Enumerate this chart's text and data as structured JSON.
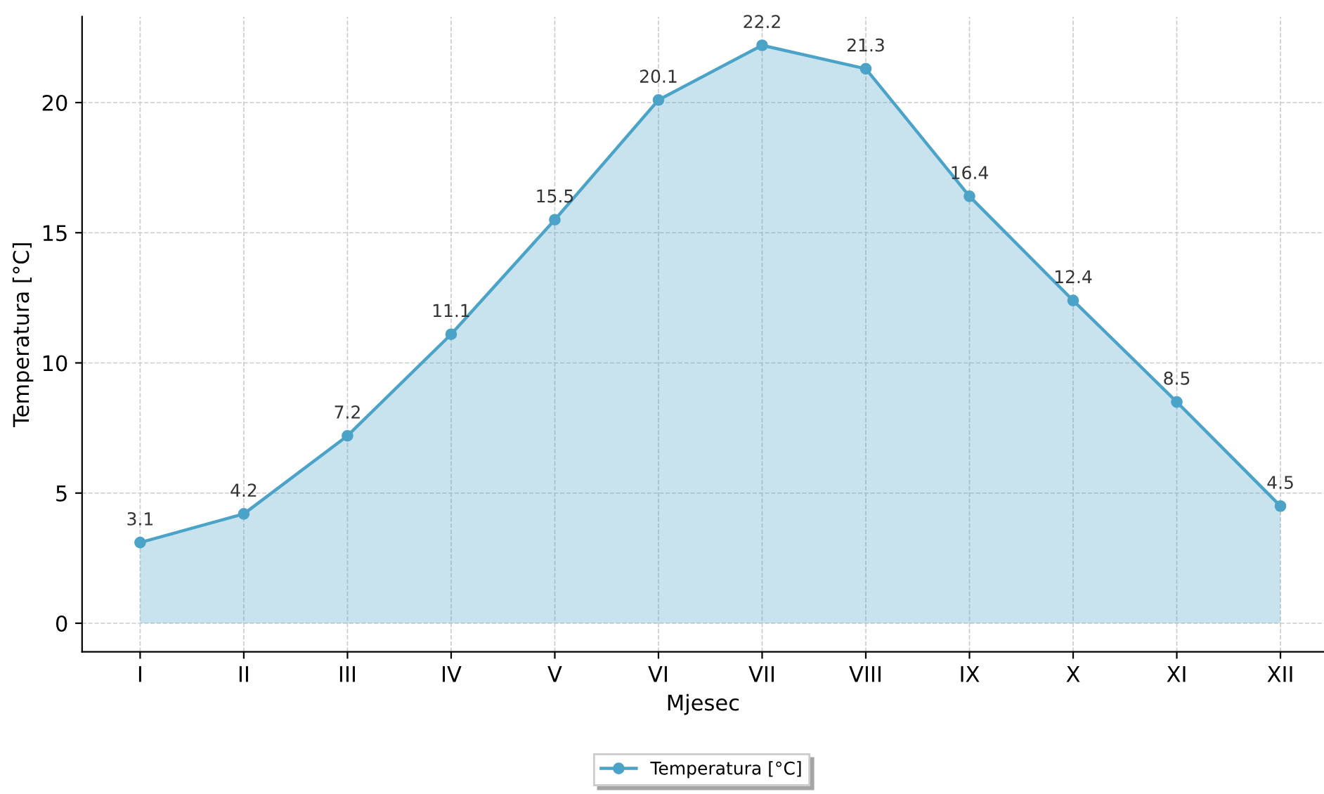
{
  "chart_data": {
    "type": "area",
    "xlabel": "Mjesec",
    "ylabel": "Temperatura [°C]",
    "categories": [
      "I",
      "II",
      "III",
      "IV",
      "V",
      "VI",
      "VII",
      "VIII",
      "IX",
      "X",
      "XI",
      "XII"
    ],
    "series": [
      {
        "name": "Temperatura [°C]",
        "color": "#4ba3c7",
        "values": [
          3.1,
          4.2,
          7.2,
          11.1,
          15.5,
          20.1,
          22.2,
          21.3,
          16.4,
          12.4,
          8.5,
          4.5
        ]
      }
    ],
    "ylim": [
      -1.1,
      23.3
    ],
    "yticks": [
      0,
      5,
      10,
      15,
      20
    ],
    "grid": true,
    "legend": "bottom",
    "marker": "circle",
    "line_style": "solid",
    "data_labels": true
  }
}
